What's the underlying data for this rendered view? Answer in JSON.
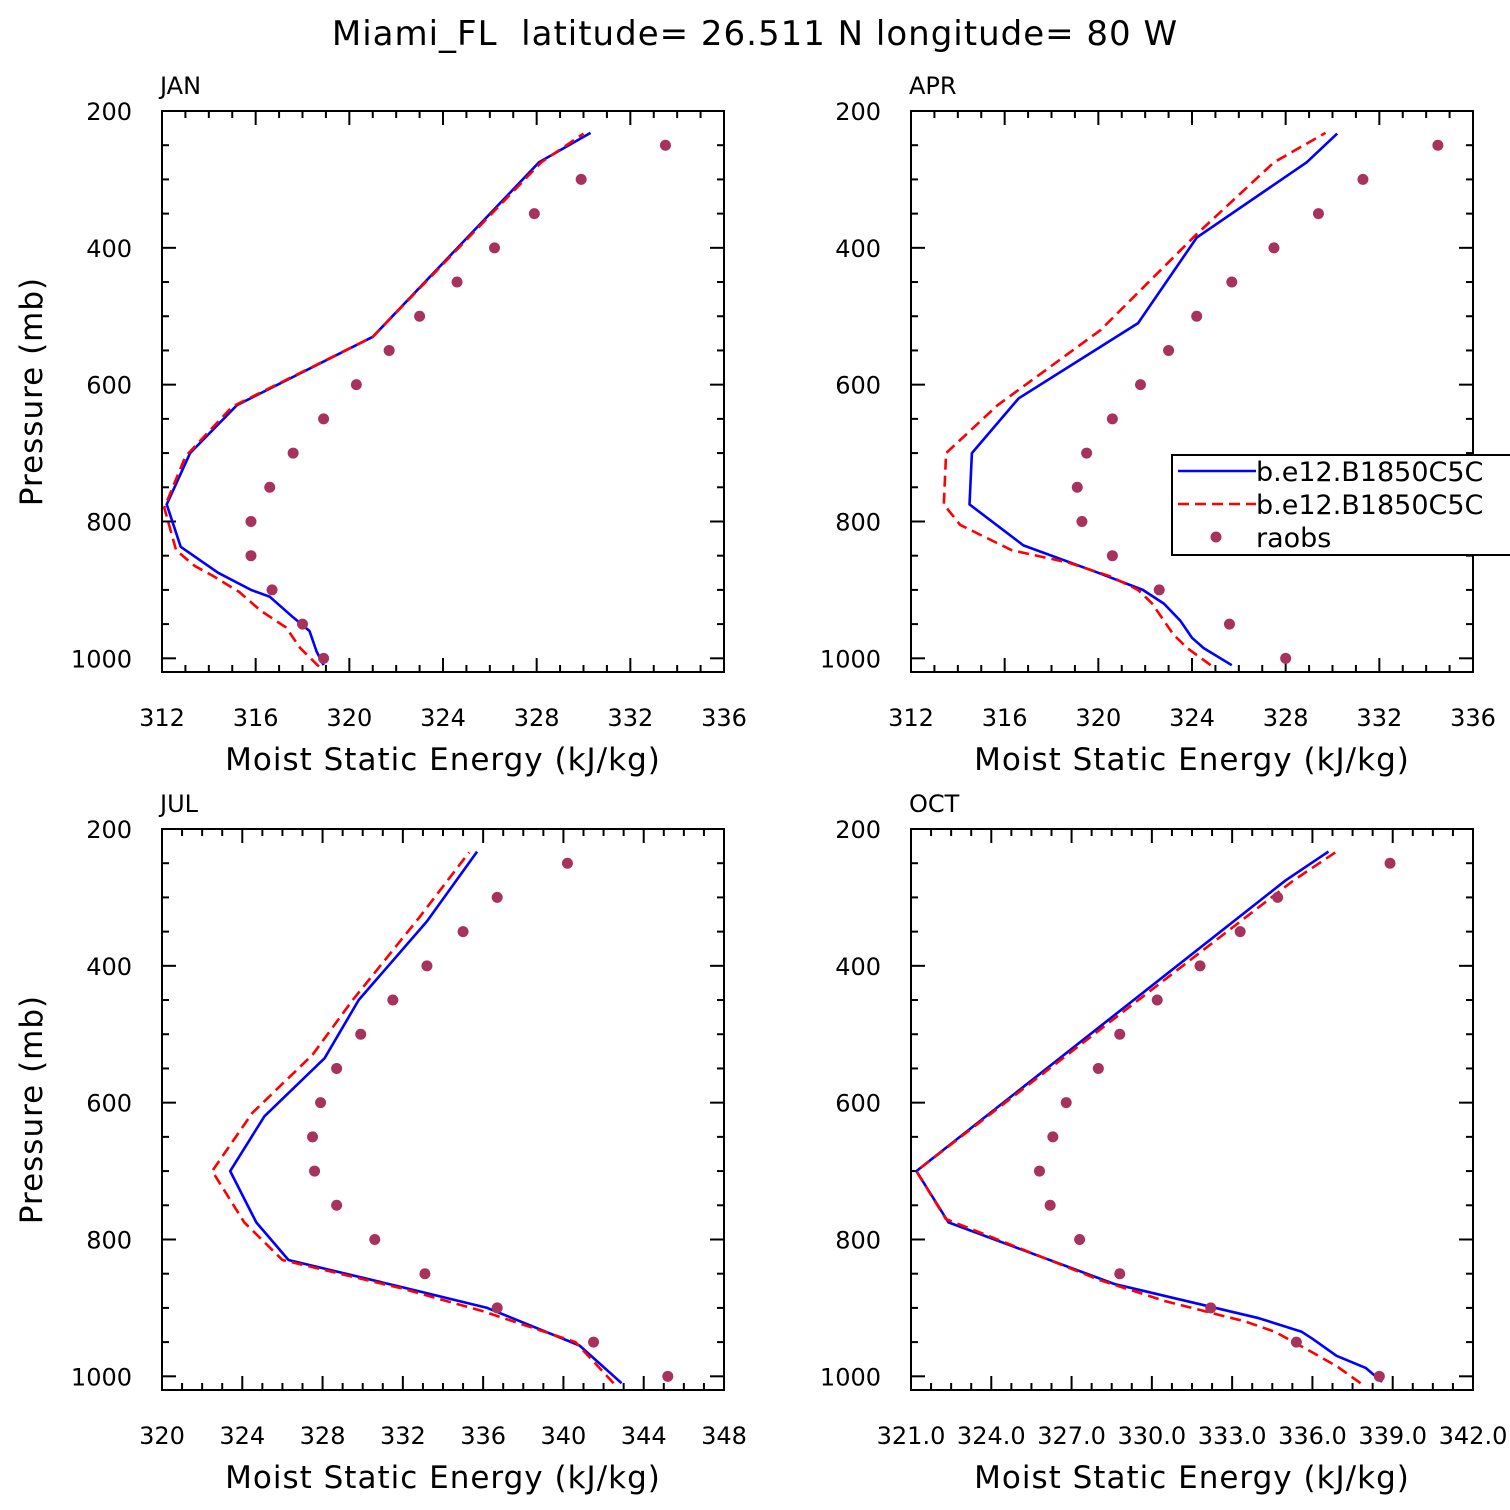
{
  "figure": {
    "title": "Miami_FL  latitude= 26.511 N longitude= 80 W"
  },
  "colors": {
    "model1": "#0000ff",
    "model2": "#ff0000",
    "raobs": "#a8325e"
  },
  "legend": {
    "placement": "right, overlapping APR panel",
    "entries": [
      {
        "label": "b.e12.B1850C5C",
        "style": "solid",
        "color": "#0000ff"
      },
      {
        "label": "b.e12.B1850C5C",
        "style": "dashed",
        "color": "#ff0000"
      },
      {
        "label": "raobs",
        "style": "dots",
        "color": "#a8325e"
      }
    ]
  },
  "chart_data": [
    {
      "type": "line",
      "panel": "JAN",
      "title": "JAN",
      "xlabel": "Moist Static Energy (kJ/kg)",
      "ylabel": "Pressure (mb)",
      "xlim": [
        312,
        336
      ],
      "ylim": [
        1020,
        200
      ],
      "y_inverted": true,
      "xticks": [
        312,
        316,
        320,
        324,
        328,
        332,
        336
      ],
      "xtick_labels": [
        "312",
        "316",
        "320",
        "324",
        "328",
        "332",
        "336"
      ],
      "yticks": [
        200,
        400,
        600,
        800,
        1000
      ],
      "series": [
        {
          "name": "b.e12.B1850C5C",
          "style": "solid",
          "x": [
            318.9,
            318.6,
            318.3,
            317.6,
            316.6,
            315.8,
            314.4,
            312.8,
            312.2,
            313.2,
            315.2,
            321.0,
            328.1,
            330.3
          ],
          "y": [
            1010,
            990,
            960,
            940,
            910,
            900,
            875,
            837,
            775,
            700,
            630,
            530,
            275,
            232
          ]
        },
        {
          "name": "b.e12.B1850C5C",
          "style": "dashed",
          "x": [
            318.7,
            317.9,
            317.3,
            316.2,
            315.3,
            314.2,
            313.4,
            312.6,
            312.1,
            313.0,
            315.0,
            321.0,
            328.2,
            330.0
          ],
          "y": [
            1012,
            985,
            955,
            930,
            903,
            880,
            865,
            842,
            780,
            705,
            632,
            530,
            275,
            233
          ]
        },
        {
          "name": "raobs",
          "style": "dots",
          "x": [
            318.9,
            318.0,
            316.7,
            315.8,
            315.8,
            316.6,
            317.6,
            318.9,
            320.3,
            321.7,
            323.0,
            324.6,
            326.2,
            327.9,
            329.9,
            333.5
          ],
          "y": [
            1000,
            950,
            900,
            850,
            800,
            750,
            700,
            650,
            600,
            550,
            500,
            450,
            400,
            350,
            300,
            250
          ]
        }
      ]
    },
    {
      "type": "line",
      "panel": "APR",
      "title": "APR",
      "xlabel": "Moist Static Energy (kJ/kg)",
      "ylabel": "",
      "xlim": [
        312,
        336
      ],
      "ylim": [
        1020,
        200
      ],
      "y_inverted": true,
      "xticks": [
        312,
        316,
        320,
        324,
        328,
        332,
        336
      ],
      "xtick_labels": [
        "312",
        "316",
        "320",
        "324",
        "328",
        "332",
        "336"
      ],
      "yticks": [
        200,
        400,
        600,
        800,
        1000
      ],
      "series": [
        {
          "name": "b.e12.B1850C5C",
          "style": "solid",
          "x": [
            325.7,
            324.5,
            324.0,
            323.5,
            322.8,
            321.9,
            320.0,
            316.8,
            314.5,
            314.6,
            316.6,
            321.7,
            324.2,
            328.9,
            330.2
          ],
          "y": [
            1010,
            985,
            970,
            945,
            920,
            900,
            875,
            835,
            775,
            700,
            620,
            510,
            385,
            275,
            233
          ]
        },
        {
          "name": "b.e12.B1850C5C",
          "style": "dashed",
          "x": [
            324.8,
            323.8,
            323.2,
            322.8,
            322.3,
            321.7,
            320.5,
            318.7,
            316.3,
            314.1,
            313.4,
            313.5,
            315.7,
            320.1,
            324.2,
            327.5,
            329.7
          ],
          "y": [
            1010,
            985,
            965,
            945,
            920,
            900,
            880,
            860,
            842,
            805,
            775,
            700,
            630,
            520,
            380,
            275,
            232
          ]
        },
        {
          "name": "raobs",
          "style": "dots",
          "x": [
            328.0,
            325.6,
            322.6,
            320.6,
            319.3,
            319.1,
            319.5,
            320.6,
            321.8,
            323.0,
            324.2,
            325.7,
            327.5,
            329.4,
            331.3,
            334.5
          ],
          "y": [
            1000,
            950,
            900,
            850,
            800,
            750,
            700,
            650,
            600,
            550,
            500,
            450,
            400,
            350,
            300,
            250
          ]
        }
      ]
    },
    {
      "type": "line",
      "panel": "JUL",
      "title": "JUL",
      "xlabel": "Moist Static Energy (kJ/kg)",
      "ylabel": "Pressure (mb)",
      "xlim": [
        320,
        348
      ],
      "ylim": [
        1020,
        200
      ],
      "y_inverted": true,
      "xticks": [
        320,
        324,
        328,
        332,
        336,
        340,
        344,
        348
      ],
      "xtick_labels": [
        "320",
        "324",
        "328",
        "332",
        "336",
        "340",
        "344",
        "348"
      ],
      "yticks": [
        200,
        400,
        600,
        800,
        1000
      ],
      "series": [
        {
          "name": "b.e12.B1850C5C",
          "style": "solid",
          "x": [
            342.9,
            340.8,
            336.2,
            332.0,
            326.3,
            324.7,
            323.4,
            325.1,
            328.1,
            329.8,
            333.2,
            335.7
          ],
          "y": [
            1010,
            955,
            900,
            870,
            830,
            775,
            700,
            620,
            535,
            450,
            335,
            233
          ]
        },
        {
          "name": "b.e12.B1850C5C",
          "style": "dashed",
          "x": [
            342.5,
            340.6,
            336.0,
            332.0,
            326.0,
            324.1,
            322.5,
            324.5,
            327.5,
            329.5,
            332.8,
            335.3
          ],
          "y": [
            1010,
            950,
            905,
            872,
            830,
            775,
            700,
            615,
            530,
            450,
            330,
            234
          ]
        },
        {
          "name": "raobs",
          "style": "dots",
          "x": [
            345.2,
            341.5,
            336.7,
            333.1,
            330.6,
            328.7,
            327.6,
            327.5,
            327.9,
            328.7,
            329.9,
            331.5,
            333.2,
            335.0,
            336.7,
            340.2
          ],
          "y": [
            1000,
            950,
            900,
            850,
            800,
            750,
            700,
            650,
            600,
            550,
            500,
            450,
            400,
            350,
            300,
            250
          ]
        }
      ]
    },
    {
      "type": "line",
      "panel": "OCT",
      "title": "OCT",
      "xlabel": "Moist Static Energy (kJ/kg)",
      "ylabel": "",
      "xlim": [
        321.0,
        342.0
      ],
      "ylim": [
        1020,
        200
      ],
      "y_inverted": true,
      "xticks": [
        321.0,
        324.0,
        327.0,
        330.0,
        333.0,
        336.0,
        339.0,
        342.0
      ],
      "xtick_labels": [
        "321.0",
        "324.0",
        "327.0",
        "330.0",
        "333.0",
        "336.0",
        "339.0",
        "342.0"
      ],
      "yticks": [
        200,
        400,
        600,
        800,
        1000
      ],
      "series": [
        {
          "name": "b.e12.B1850C5C",
          "style": "solid",
          "x": [
            338.6,
            338.0,
            336.9,
            336.0,
            335.6,
            334.0,
            328.6,
            322.4,
            321.2,
            335.0,
            336.6
          ],
          "y": [
            1008,
            988,
            970,
            945,
            935,
            915,
            865,
            775,
            700,
            275,
            233
          ]
        },
        {
          "name": "b.e12.B1850C5C",
          "style": "dashed",
          "x": [
            337.8,
            336.9,
            336.0,
            335.3,
            334.6,
            333.5,
            330.5,
            328.1,
            322.3,
            321.2,
            335.3,
            336.9
          ],
          "y": [
            1010,
            985,
            965,
            950,
            935,
            920,
            890,
            860,
            770,
            700,
            275,
            233
          ]
        },
        {
          "name": "raobs",
          "style": "dots",
          "x": [
            338.5,
            335.4,
            332.2,
            328.8,
            327.3,
            326.2,
            325.8,
            326.3,
            326.8,
            328.0,
            328.8,
            330.2,
            331.8,
            333.3,
            334.7,
            338.9
          ],
          "y": [
            1000,
            950,
            900,
            850,
            800,
            750,
            700,
            650,
            600,
            550,
            500,
            450,
            400,
            350,
            300,
            250
          ]
        }
      ]
    }
  ]
}
